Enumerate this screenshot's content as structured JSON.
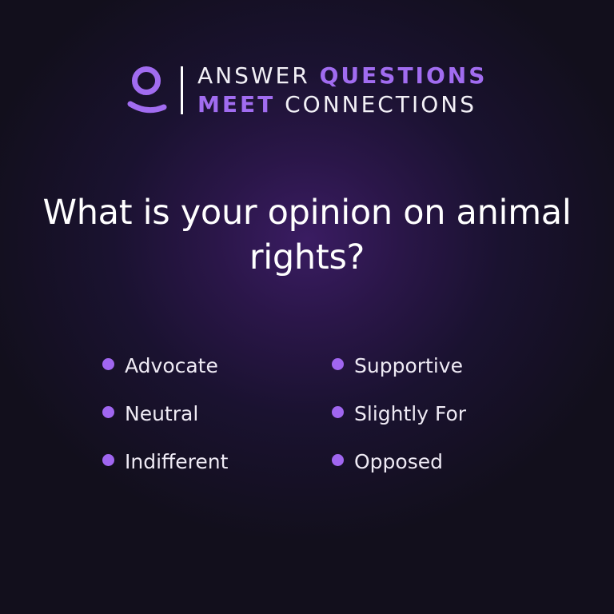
{
  "header": {
    "logo_icon": "person-icon",
    "tagline_line1_light": "ANSWER",
    "tagline_line1_accent": "QUESTIONS",
    "tagline_line2_accent": "MEET",
    "tagline_line2_light": "CONNECTIONS"
  },
  "question": {
    "text": "What is your opinion on animal rights?"
  },
  "options": [
    {
      "label": "Advocate"
    },
    {
      "label": "Supportive"
    },
    {
      "label": "Neutral"
    },
    {
      "label": "Slightly For"
    },
    {
      "label": "Indifferent"
    },
    {
      "label": "Opposed"
    }
  ],
  "colors": {
    "accent": "#a16cf0",
    "bullet": "#a066f0",
    "background_center": "#3a1c62",
    "background_edge": "#120f1c",
    "text": "#ffffff"
  }
}
